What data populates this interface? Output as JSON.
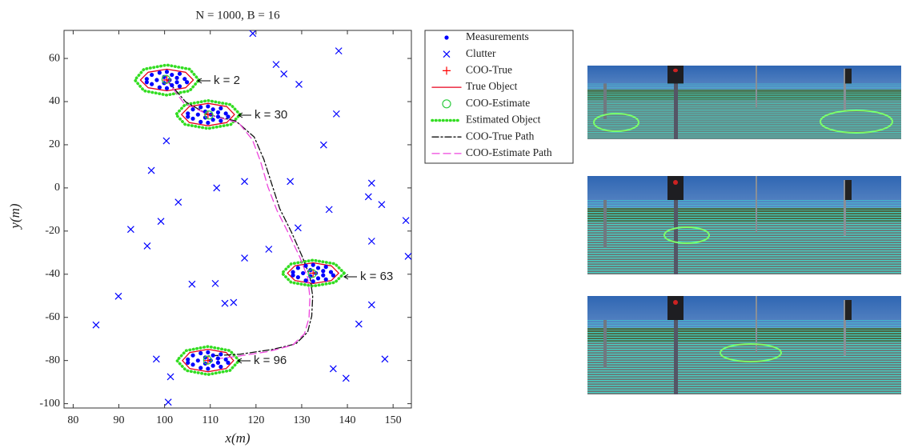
{
  "chart_data": {
    "type": "scatter",
    "title": "N = 1000, B = 16",
    "x_label": "x(m)",
    "y_label": "y(m)",
    "xlim": [
      78,
      154
    ],
    "ylim": [
      -102,
      73
    ],
    "xticks": [
      80,
      90,
      100,
      110,
      120,
      130,
      140,
      150
    ],
    "yticks": [
      -100,
      -80,
      -60,
      -40,
      -20,
      0,
      20,
      40,
      60
    ],
    "grid": false,
    "legend": "outside-right",
    "annotations": [
      "k = 2",
      "k = 30",
      "k = 63",
      "k = 96"
    ],
    "series": [
      {
        "name": "Measurements",
        "marker": "dot",
        "color": "#0000ff",
        "x": [
          96.1,
          97.2,
          97.2,
          98.3,
          98.9,
          98.9,
          99.9,
          99.9,
          100.5,
          100.5,
          101.1,
          101.6,
          101.6,
          102.7,
          102.7,
          103.3,
          103.3,
          104.4,
          104.9,
          96.1,
          105.1,
          106.2,
          106.2,
          107.3,
          107.9,
          107.9,
          108.9,
          108.9,
          109.5,
          109.5,
          110.1,
          110.6,
          110.6,
          111.7,
          111.7,
          112.3,
          112.3,
          113.4,
          113.9,
          105.1,
          128.1,
          129.2,
          129.2,
          130.3,
          130.9,
          130.9,
          131.9,
          131.9,
          132.5,
          132.5,
          133.1,
          133.6,
          133.6,
          134.7,
          134.7,
          135.3,
          135.3,
          136.4,
          136.9,
          128.1,
          105.1,
          106.2,
          106.2,
          107.3,
          107.9,
          107.9,
          108.9,
          108.9,
          109.5,
          109.5,
          110.1,
          110.6,
          110.6,
          111.7,
          111.7,
          112.3,
          112.3,
          113.4,
          113.9,
          105.1
        ],
        "y": [
          50.5,
          52.4,
          48.1,
          50,
          53.4,
          46.6,
          51.4,
          48.6,
          53.8,
          46.2,
          50,
          52.4,
          47.6,
          51,
          49,
          52.9,
          47.1,
          50.5,
          49,
          49,
          34.5,
          36.4,
          32.1,
          34,
          37.4,
          30.6,
          35.4,
          32.6,
          37.8,
          30.2,
          34,
          36.4,
          31.6,
          35,
          33,
          36.9,
          31.1,
          34.5,
          33,
          33,
          -39,
          -37.1,
          -41.4,
          -39.5,
          -36.1,
          -42.9,
          -38.1,
          -40.9,
          -35.7,
          -43.3,
          -39.5,
          -37.1,
          -41.9,
          -38.5,
          -40.5,
          -36.6,
          -42.4,
          -39,
          -40.5,
          -40.5,
          -79.5,
          -77.6,
          -81.9,
          -80,
          -76.6,
          -83.4,
          -78.6,
          -81.4,
          -76.2,
          -83.8,
          -80,
          -77.6,
          -82.4,
          -79,
          -81,
          -77.1,
          -82.9,
          -79.5,
          -81,
          -81
        ]
      },
      {
        "name": "Clutter",
        "marker": "x",
        "color": "#0000ff",
        "x": [
          119.3,
          138.1,
          124.4,
          126.1,
          129.4,
          137.6,
          100.4,
          134.8,
          97.1,
          145.3,
          111.4,
          117.5,
          127.5,
          144.6,
          147.5,
          103,
          99.2,
          152.8,
          92.6,
          129.2,
          136,
          96.2,
          145.3,
          117.5,
          122.8,
          153.3,
          106,
          111.1,
          89.9,
          113.2,
          115.1,
          145.3,
          142.5,
          85,
          98.2,
          148.2,
          101.3,
          136.9,
          139.7,
          100.8
        ],
        "y": [
          71.6,
          63.5,
          57.2,
          52.8,
          48,
          34.3,
          21.8,
          19.9,
          8.1,
          2.2,
          0,
          3,
          3,
          -4.1,
          -7.7,
          -6.6,
          -15.5,
          -15.1,
          -19.2,
          -18.5,
          -10,
          -26.9,
          -24.7,
          -32.5,
          -28.4,
          -31.7,
          -44.6,
          -44.3,
          -50.2,
          -53.5,
          -53.1,
          -54.2,
          -63.1,
          -63.5,
          -79.3,
          -79.3,
          -87.5,
          -83.8,
          -88.2,
          -99.3
        ]
      },
      {
        "name": "COO-True",
        "marker": "plus",
        "color": "#ff0000",
        "x": [
          100.5,
          109.5,
          132.5,
          109.5
        ],
        "y": [
          50,
          34,
          -39.5,
          -80
        ]
      },
      {
        "name": "True Object",
        "line_style": "solid",
        "color": "#e8001c",
        "x": [
          106.3,
          104.6,
          100.5,
          96.4,
          94.7,
          96.4,
          100.5,
          104.6,
          106.3,
          null,
          115.3,
          113.6,
          109.5,
          105.4,
          103.7,
          105.4,
          109.5,
          113.6,
          115.3,
          null,
          138.1,
          136.5,
          132.5,
          128.5,
          126.9,
          128.5,
          132.5,
          136.5,
          138.1,
          null,
          115.1,
          113.5,
          109.5,
          105.5,
          103.9,
          105.5,
          109.5,
          113.5,
          115.1
        ],
        "y": [
          50,
          53.6,
          55,
          53.6,
          50,
          46.4,
          45,
          46.4,
          50,
          null,
          34,
          37.7,
          39.2,
          37.7,
          34,
          30.3,
          28.8,
          30.3,
          34,
          null,
          -39.5,
          -36.1,
          -34.7,
          -36.1,
          -39.5,
          -42.9,
          -44.3,
          -42.9,
          -39.5,
          null,
          -80,
          -76.3,
          -74.8,
          -76.3,
          -80,
          -83.7,
          -85.2,
          -83.7,
          -80
        ]
      },
      {
        "name": "COO-Estimate",
        "marker": "circle",
        "color": "#2ecc40",
        "x": [
          100.3,
          109.7,
          132.3,
          109.4
        ],
        "y": [
          50.3,
          33.8,
          -39.7,
          -79.8
        ]
      },
      {
        "name": "Estimated Object",
        "line_style": "dotted",
        "color": "#33dd22",
        "x": [
          107.5,
          105.5,
          100.5,
          95.5,
          93.5,
          95.5,
          100.5,
          105.5,
          107.5,
          null,
          116.5,
          114.5,
          109.5,
          104.5,
          102.5,
          104.5,
          109.5,
          114.5,
          116.5,
          null,
          139.3,
          137.3,
          132.5,
          127.7,
          125.7,
          127.7,
          132.5,
          137.3,
          139.3,
          null,
          116.3,
          114.3,
          109.5,
          104.7,
          102.7,
          104.7,
          109.5,
          114.3,
          116.3
        ],
        "y": [
          50,
          55,
          57,
          55,
          50,
          45,
          43,
          45,
          50,
          null,
          34,
          38.6,
          40.5,
          38.6,
          34,
          29.4,
          27.5,
          29.4,
          34,
          null,
          -39.5,
          -35.2,
          -33.5,
          -35.2,
          -39.5,
          -43.8,
          -45.5,
          -43.8,
          -39.5,
          null,
          -80,
          -75.4,
          -73.5,
          -75.4,
          -80,
          -84.6,
          -86.5,
          -84.6,
          -80
        ]
      },
      {
        "name": "COO-True Path",
        "line_style": "dashdot",
        "color": "#111111",
        "x": [
          100.5,
          104.6,
          109.5,
          115.6,
          119.6,
          121.7,
          123.5,
          125.2,
          127.8,
          130.1,
          131.8,
          132.4,
          132.2,
          131.3,
          128.7,
          123.5,
          116.5,
          109.5
        ],
        "y": [
          50,
          39.9,
          34,
          31,
          23.6,
          13.3,
          1.5,
          -9.6,
          -20.7,
          -31.7,
          -41,
          -50.2,
          -59.4,
          -66.8,
          -72.3,
          -74.9,
          -77.1,
          -77.9
        ]
      },
      {
        "name": "COO-Estimate Path",
        "line_style": "dashed",
        "color": "#ee44dd",
        "x": [
          100.3,
          104.2,
          109.7,
          116.2,
          119.2,
          121.0,
          122.6,
          124.6,
          127.2,
          129.6,
          131.3,
          131.8,
          131.6,
          130.6,
          128.0,
          122.8,
          116.0,
          109.4
        ],
        "y": [
          50.3,
          39.4,
          33.8,
          30.2,
          22.4,
          12.2,
          0.5,
          -10.5,
          -21.4,
          -32.2,
          -41.5,
          -50.8,
          -60.2,
          -67.6,
          -72.9,
          -75.8,
          -78.0,
          -79.8
        ]
      }
    ]
  }
}
